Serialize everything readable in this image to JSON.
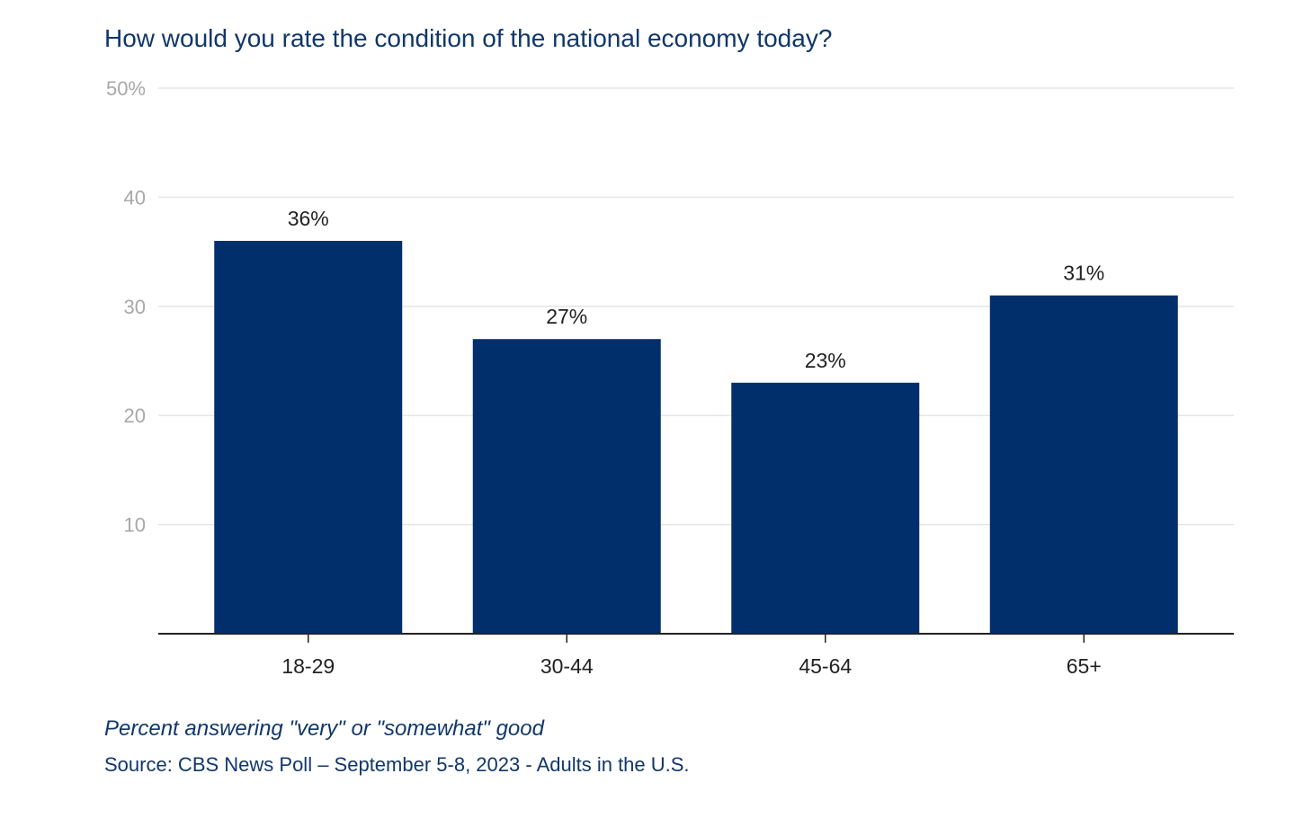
{
  "title": "How would you rate the condition of the national economy today?",
  "note": "Percent answering \"very\" or \"somewhat\" good",
  "source": "Source: CBS News Poll – September 5-8, 2023 - Adults in the U.S.",
  "colors": {
    "bar": "#012f6b",
    "title": "#11376b",
    "grid": "#e6e6e6",
    "axis": "#222222",
    "tick": "#a8a8a8"
  },
  "chart_data": {
    "type": "bar",
    "title": "How would you rate the condition of the national economy today?",
    "categories": [
      "18-29",
      "30-44",
      "45-64",
      "65+"
    ],
    "values": [
      36,
      27,
      23,
      31
    ],
    "value_labels": [
      "36%",
      "27%",
      "23%",
      "31%"
    ],
    "ylim": [
      0,
      50
    ],
    "yticks": [
      10,
      20,
      30,
      40,
      50
    ],
    "ytick_labels": [
      "10",
      "20",
      "30",
      "40",
      "50%"
    ],
    "xlabel": "",
    "ylabel": "",
    "grid": true,
    "legend": "none"
  }
}
